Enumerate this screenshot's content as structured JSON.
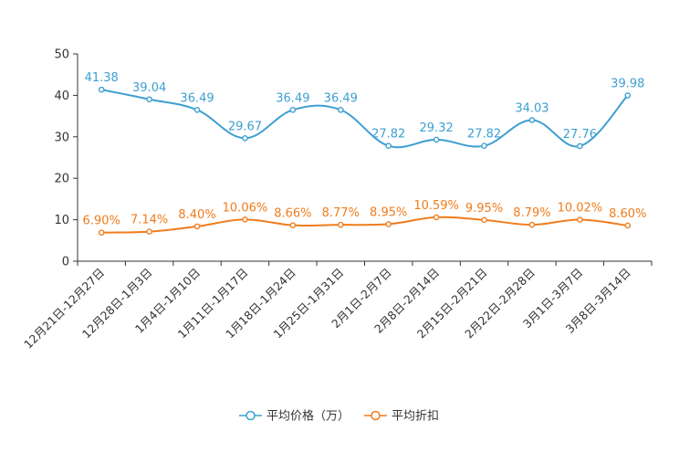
{
  "chart_data": {
    "type": "line",
    "categories": [
      "12月21日-12月27日",
      "12月28日-1月3日",
      "1月4日-1月10日",
      "1月11日-1月17日",
      "1月18日-1月24日",
      "1月25日-1月31日",
      "2月1日-2月7日",
      "2月8日-2月14日",
      "2月15日-2月21日",
      "2月22日-2月28日",
      "3月1日-3月7日",
      "3月8日-3月14日"
    ],
    "series": [
      {
        "name": "平均价格（万）",
        "color": "#3d9fd1",
        "values": [
          41.38,
          39.04,
          36.49,
          29.67,
          36.49,
          36.49,
          27.82,
          29.32,
          27.82,
          34.03,
          27.76,
          39.98
        ],
        "labels": [
          "41.38",
          "39.04",
          "36.49",
          "29.67",
          "36.49",
          "36.49",
          "27.82",
          "29.32",
          "27.82",
          "34.03",
          "27.76",
          "39.98"
        ]
      },
      {
        "name": "平均折扣",
        "color": "#f07c1c",
        "values": [
          6.9,
          7.14,
          8.4,
          10.06,
          8.66,
          8.77,
          8.95,
          10.59,
          9.95,
          8.79,
          10.02,
          8.6
        ],
        "labels": [
          "6.90%",
          "7.14%",
          "8.40%",
          "10.06%",
          "8.66%",
          "8.77%",
          "8.95%",
          "10.59%",
          "9.95%",
          "8.79%",
          "10.02%",
          "8.60%"
        ]
      }
    ],
    "ylim": [
      0,
      50
    ],
    "yticks": [
      "0",
      "10",
      "20",
      "30",
      "40",
      "50"
    ],
    "title": "",
    "xlabel": "",
    "ylabel": "",
    "legend": "bottom-center"
  }
}
